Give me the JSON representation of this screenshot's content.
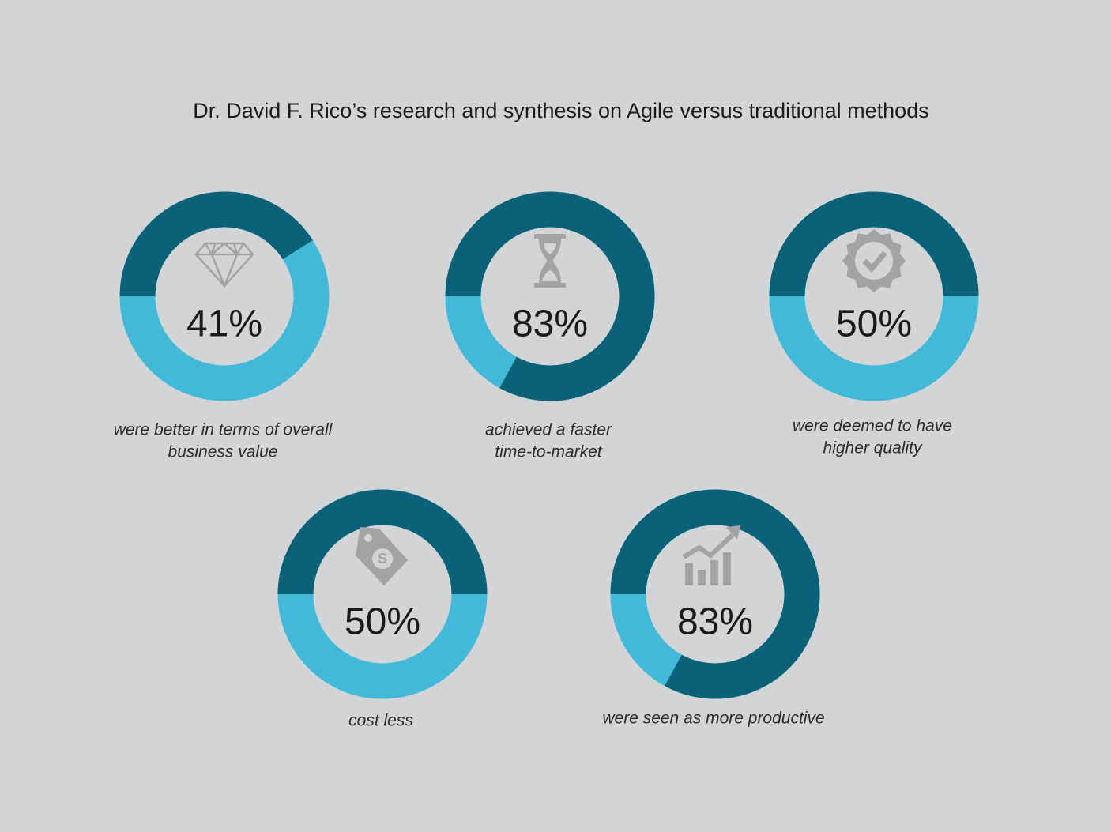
{
  "title": "Dr. David F. Rico’s research and synthesis on Agile versus traditional methods",
  "chart_data": [
    {
      "type": "donut",
      "values": [
        41
      ],
      "value_labels": [
        "41%"
      ],
      "caption": [
        "were better in terms of overall",
        "business value"
      ],
      "color": "#0b6178",
      "track_color": "#43b9da"
    },
    {
      "type": "donut",
      "values": [
        83
      ],
      "value_labels": [
        "83%"
      ],
      "caption": [
        "achieved a faster",
        "time-to-market"
      ],
      "color": "#0b6178",
      "track_color": "#43b9da"
    },
    {
      "type": "donut",
      "values": [
        50
      ],
      "value_labels": [
        "50%"
      ],
      "caption": [
        "were deemed to have",
        "higher quality"
      ],
      "color": "#0b6178",
      "track_color": "#43b9da"
    },
    {
      "type": "donut",
      "values": [
        50
      ],
      "value_labels": [
        "50%"
      ],
      "caption": [
        "cost less"
      ],
      "color": "#0b6178",
      "track_color": "#43b9da"
    },
    {
      "type": "donut",
      "values": [
        83
      ],
      "value_labels": [
        "83%"
      ],
      "caption": [
        "were seen as more productive"
      ],
      "color": "#0b6178",
      "track_color": "#43b9da"
    }
  ]
}
